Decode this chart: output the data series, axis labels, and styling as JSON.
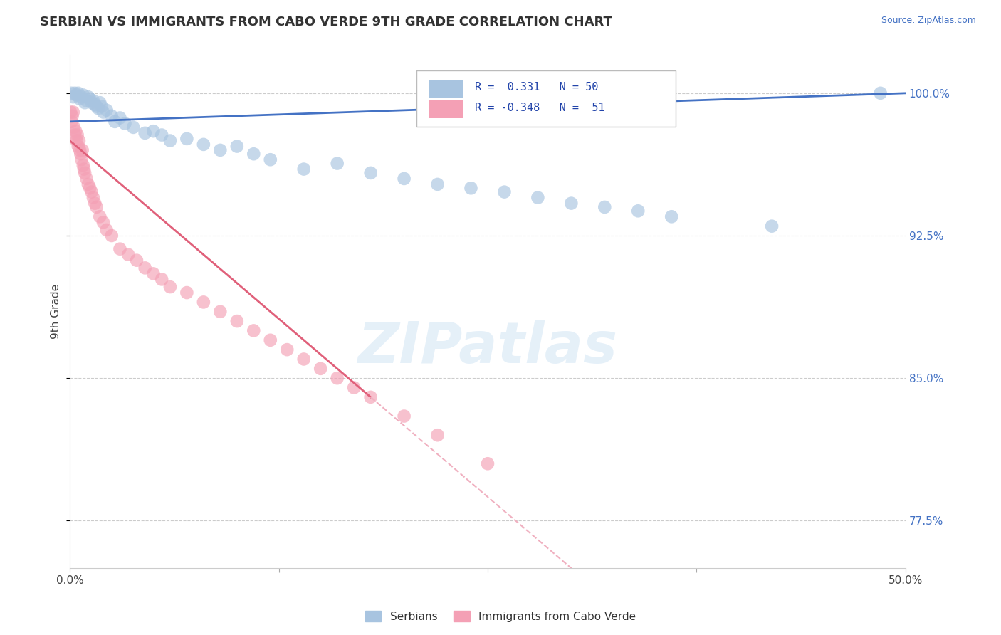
{
  "title": "SERBIAN VS IMMIGRANTS FROM CABO VERDE 9TH GRADE CORRELATION CHART",
  "source_text": "Source: ZipAtlas.com",
  "ylabel": "9th Grade",
  "xlim": [
    0.0,
    50.0
  ],
  "ylim": [
    75.0,
    102.0
  ],
  "yticks": [
    77.5,
    85.0,
    92.5,
    100.0
  ],
  "xtick_labels": [
    "0.0%",
    "",
    "",
    "",
    "50.0%"
  ],
  "ytick_labels": [
    "77.5%",
    "85.0%",
    "92.5%",
    "100.0%"
  ],
  "blue_R": 0.331,
  "blue_N": 50,
  "pink_R": -0.348,
  "pink_N": 51,
  "blue_color": "#a8c4e0",
  "blue_line_color": "#4472c4",
  "pink_color": "#f4a0b5",
  "pink_line_color": "#e0607a",
  "pink_dash_color": "#f0b0c0",
  "watermark": "ZIPatlas",
  "legend_label_blue": "Serbians",
  "legend_label_pink": "Immigrants from Cabo Verde",
  "blue_dots_x": [
    0.1,
    0.2,
    0.3,
    0.4,
    0.5,
    0.6,
    0.7,
    0.8,
    0.9,
    1.0,
    1.1,
    1.2,
    1.3,
    1.4,
    1.5,
    1.6,
    1.7,
    1.8,
    1.9,
    2.0,
    2.2,
    2.5,
    2.7,
    3.0,
    3.3,
    3.8,
    4.5,
    5.0,
    5.5,
    6.0,
    7.0,
    8.0,
    9.0,
    10.0,
    11.0,
    12.0,
    14.0,
    16.0,
    18.0,
    20.0,
    22.0,
    24.0,
    26.0,
    28.0,
    30.0,
    32.0,
    34.0,
    36.0,
    42.0,
    48.5
  ],
  "blue_dots_y": [
    100.0,
    99.8,
    100.0,
    99.9,
    100.0,
    99.7,
    99.8,
    99.9,
    99.5,
    99.6,
    99.8,
    99.7,
    99.5,
    99.6,
    99.4,
    99.3,
    99.2,
    99.5,
    99.3,
    99.0,
    99.1,
    98.8,
    98.5,
    98.7,
    98.4,
    98.2,
    97.9,
    98.0,
    97.8,
    97.5,
    97.6,
    97.3,
    97.0,
    97.2,
    96.8,
    96.5,
    96.0,
    96.3,
    95.8,
    95.5,
    95.2,
    95.0,
    94.8,
    94.5,
    94.2,
    94.0,
    93.8,
    93.5,
    93.0,
    100.0
  ],
  "pink_dots_x": [
    0.05,
    0.1,
    0.15,
    0.2,
    0.25,
    0.3,
    0.35,
    0.4,
    0.45,
    0.5,
    0.55,
    0.6,
    0.65,
    0.7,
    0.75,
    0.8,
    0.85,
    0.9,
    1.0,
    1.1,
    1.2,
    1.3,
    1.4,
    1.5,
    1.6,
    1.8,
    2.0,
    2.2,
    2.5,
    3.0,
    3.5,
    4.0,
    4.5,
    5.0,
    5.5,
    6.0,
    7.0,
    8.0,
    9.0,
    10.0,
    11.0,
    12.0,
    13.0,
    14.0,
    15.0,
    16.0,
    17.0,
    18.0,
    20.0,
    22.0,
    25.0
  ],
  "pink_dots_y": [
    99.0,
    98.5,
    98.8,
    99.0,
    98.2,
    97.8,
    98.0,
    97.5,
    97.8,
    97.2,
    97.5,
    97.0,
    96.8,
    96.5,
    97.0,
    96.2,
    96.0,
    95.8,
    95.5,
    95.2,
    95.0,
    94.8,
    94.5,
    94.2,
    94.0,
    93.5,
    93.2,
    92.8,
    92.5,
    91.8,
    91.5,
    91.2,
    90.8,
    90.5,
    90.2,
    89.8,
    89.5,
    89.0,
    88.5,
    88.0,
    87.5,
    87.0,
    86.5,
    86.0,
    85.5,
    85.0,
    84.5,
    84.0,
    83.0,
    82.0,
    80.5
  ],
  "pink_line_solid_end_x": 18.0,
  "pink_line_dashed_start_x": 18.0
}
